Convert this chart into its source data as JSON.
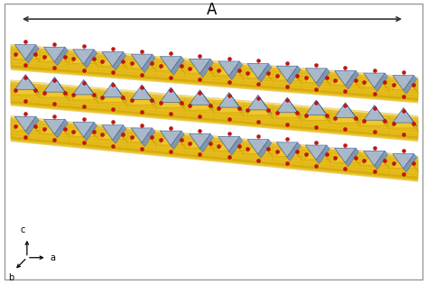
{
  "title": "A",
  "yellow_color": "#d4a800",
  "yellow_light": "#f0c830",
  "blue_color": "#7090c8",
  "blue_light": "#a0b8e0",
  "blue_dark": "#3a5a90",
  "red_color": "#cc1010",
  "bg_color": "#ffffff",
  "border_color": "#999999",
  "arrow_color": "#333333",
  "axis_c": "c",
  "axis_b": "b",
  "axis_a": "a",
  "n_layers": 3,
  "n_units_per_layer": 14
}
